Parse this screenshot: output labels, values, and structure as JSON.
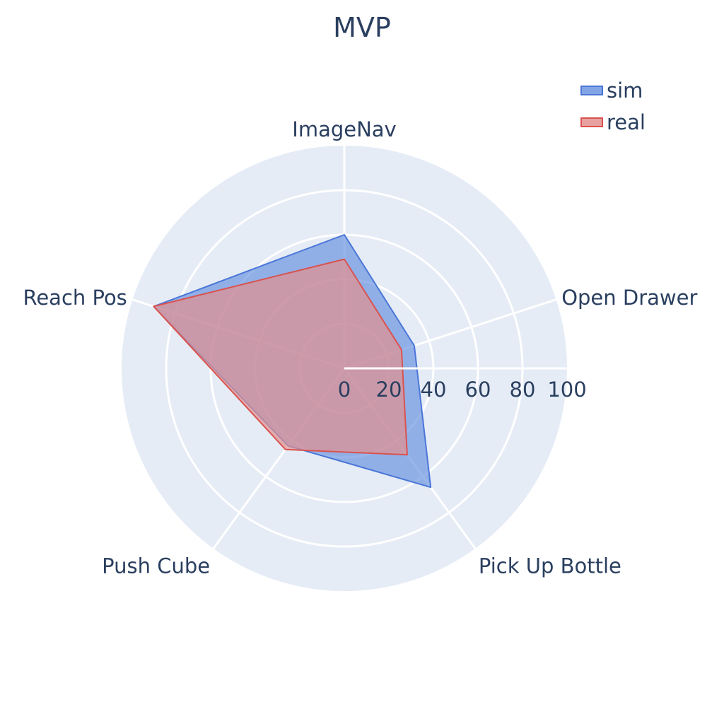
{
  "chart_data": {
    "type": "radar",
    "title": "MVP",
    "categories": [
      "Open Drawer",
      "ImageNav",
      "Reach Pos",
      "Push Cube",
      "Pick Up Bottle"
    ],
    "radial_range": [
      0,
      100
    ],
    "radial_ticks": [
      "0",
      "20",
      "40",
      "60",
      "80",
      "100"
    ],
    "grid": true,
    "legend_position": "top-right",
    "series": [
      {
        "name": "sim",
        "values": [
          33,
          60,
          90,
          43,
          66
        ],
        "color": "#4a76d8",
        "fill": "#6e95e1"
      },
      {
        "name": "real",
        "values": [
          27,
          49,
          90,
          45,
          48
        ],
        "color": "#d9534f",
        "fill": "#e3908f"
      }
    ],
    "background_color": "#e5ecf6",
    "grid_color": "#ffffff",
    "text_color": "#2a3f5f"
  }
}
